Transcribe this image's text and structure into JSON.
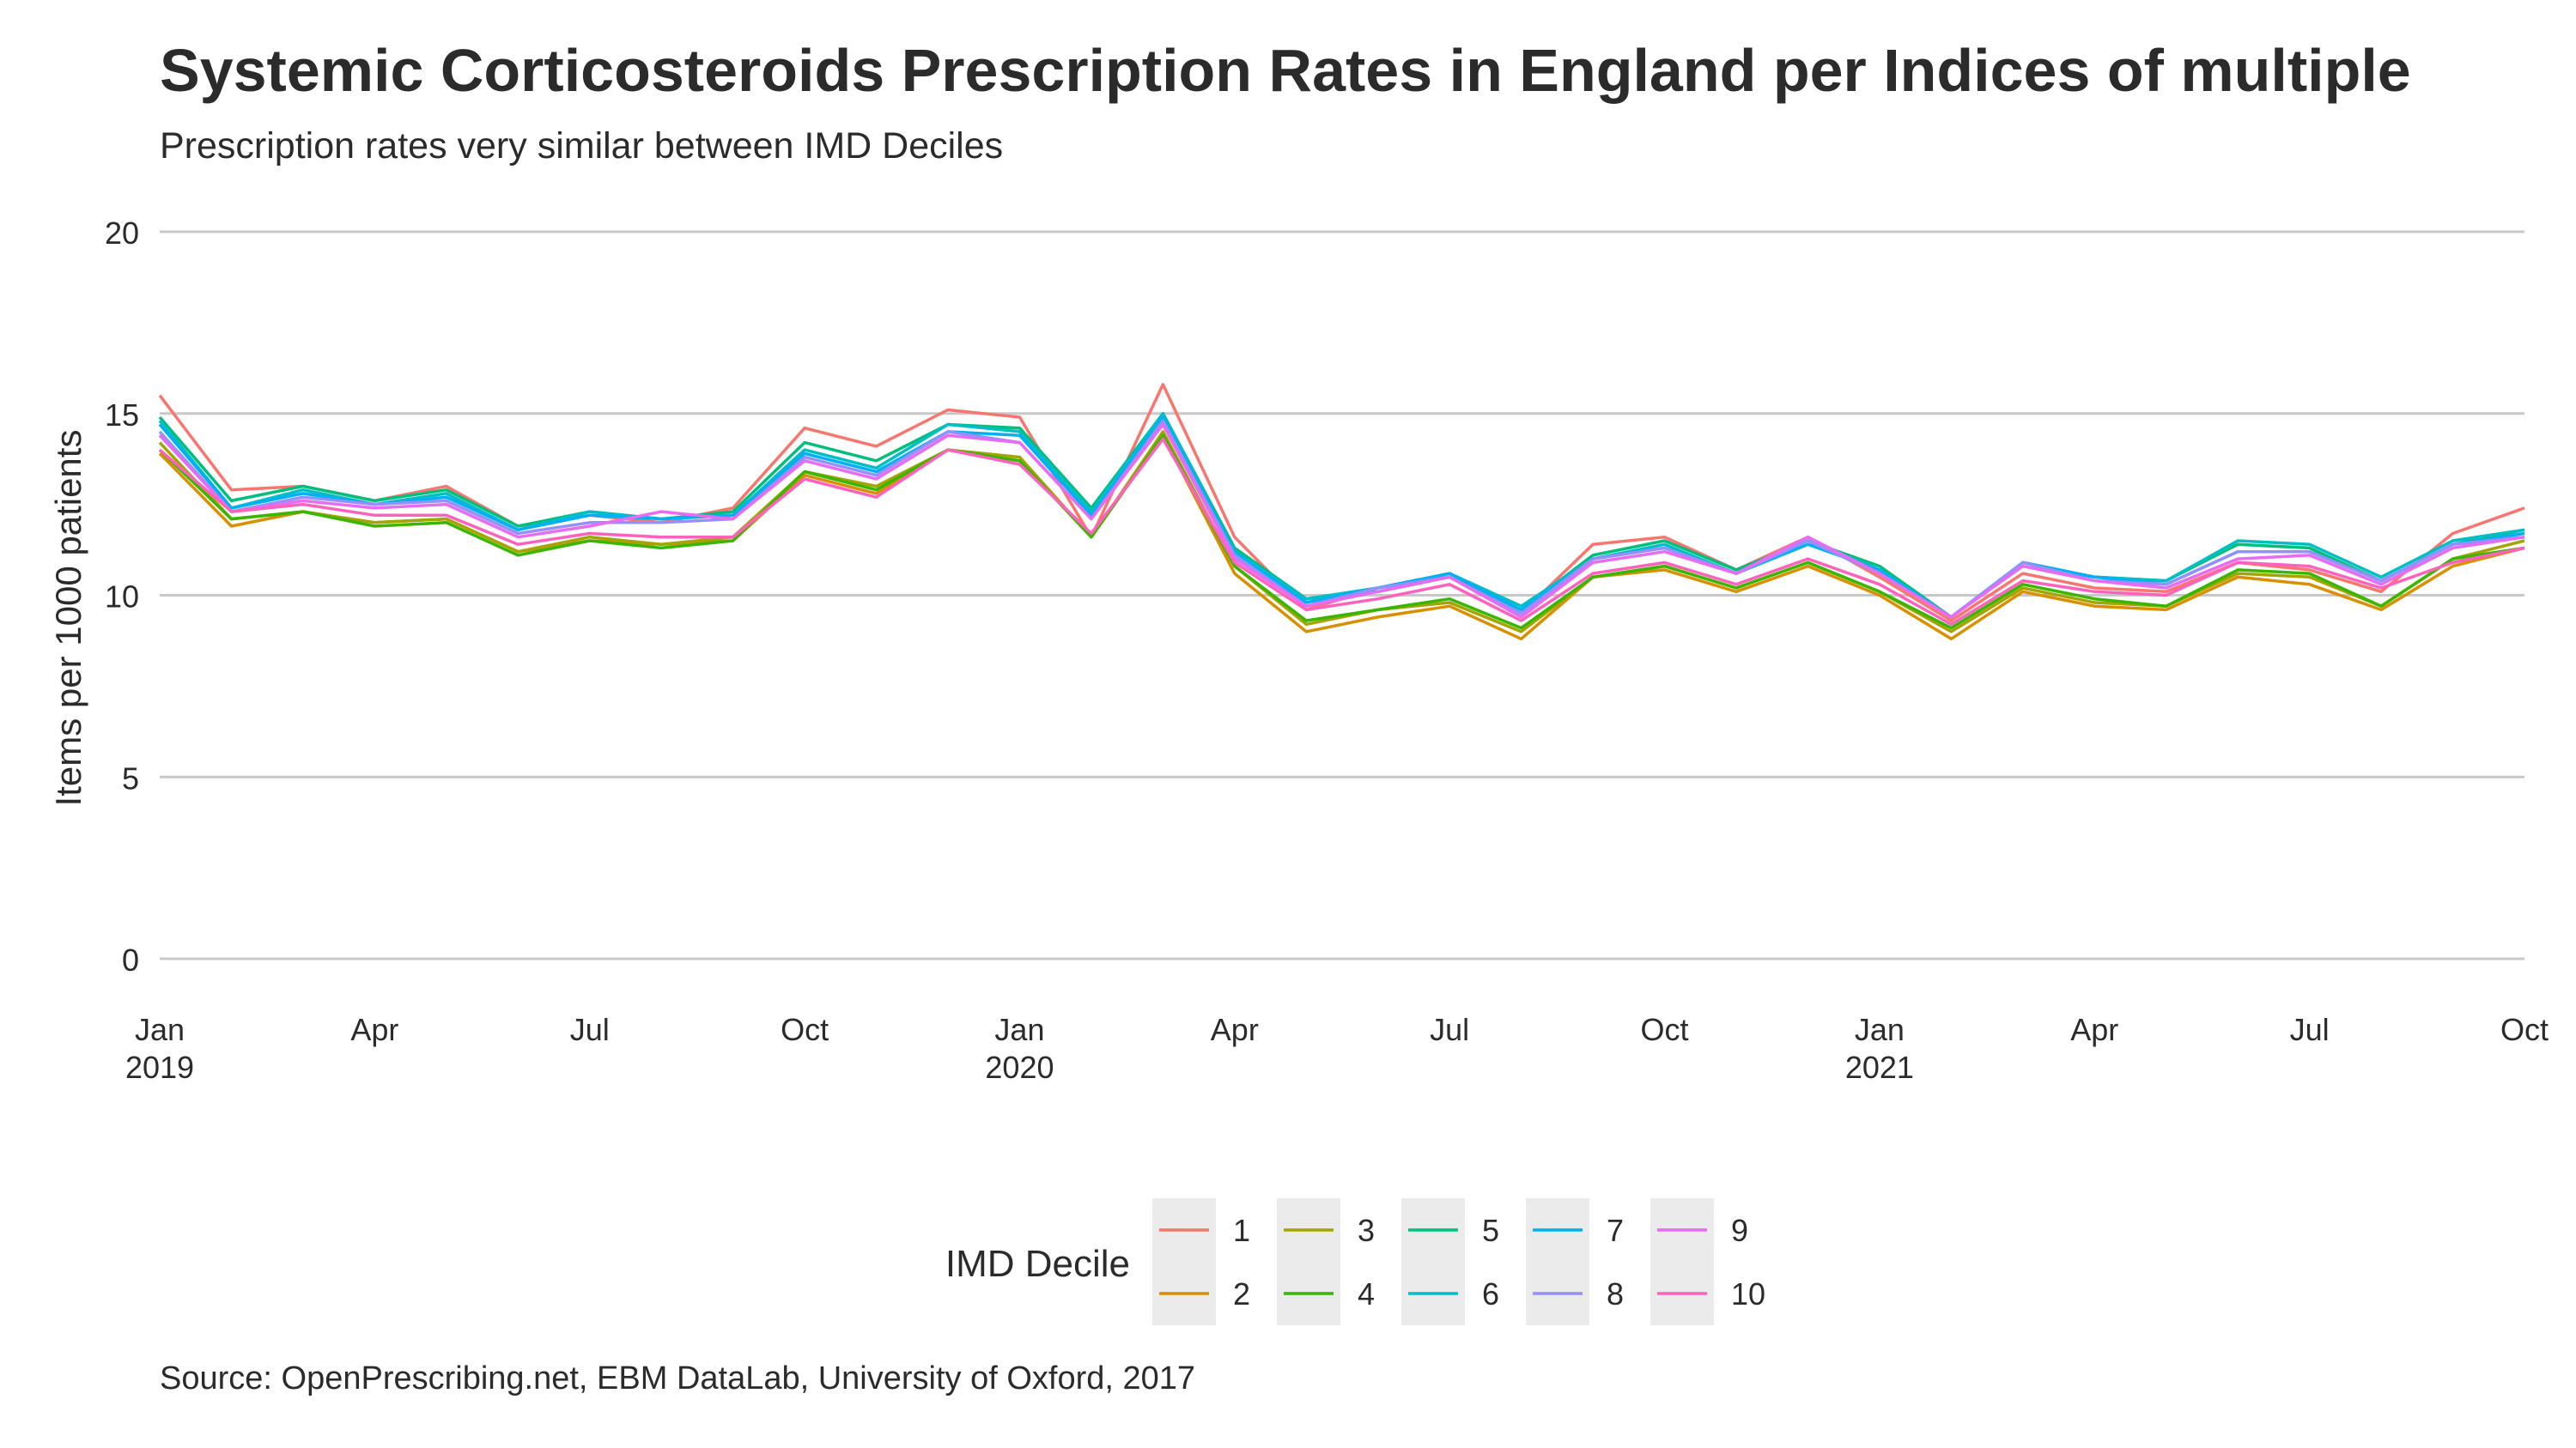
{
  "title": "Systemic Corticosteroids Prescription Rates in England per Indices of multiple",
  "subtitle": "Prescription rates very similar between IMD Deciles",
  "caption": "Source: OpenPrescribing.net, EBM DataLab, University of Oxford, 2017",
  "chart_data": {
    "type": "line",
    "ylabel": "Items per 1000 patients",
    "xlabel": "",
    "ylim": [
      0,
      20
    ],
    "y_ticks": [
      "0",
      "5",
      "10",
      "15",
      "20"
    ],
    "x_tick_labels": [
      {
        "month": 0,
        "line1": "Jan",
        "line2": "2019"
      },
      {
        "month": 3,
        "line1": "Apr",
        "line2": ""
      },
      {
        "month": 6,
        "line1": "Jul",
        "line2": ""
      },
      {
        "month": 9,
        "line1": "Oct",
        "line2": ""
      },
      {
        "month": 12,
        "line1": "Jan",
        "line2": "2020"
      },
      {
        "month": 15,
        "line1": "Apr",
        "line2": ""
      },
      {
        "month": 18,
        "line1": "Jul",
        "line2": ""
      },
      {
        "month": 21,
        "line1": "Oct",
        "line2": ""
      },
      {
        "month": 24,
        "line1": "Jan",
        "line2": "2021"
      },
      {
        "month": 27,
        "line1": "Apr",
        "line2": ""
      },
      {
        "month": 30,
        "line1": "Jul",
        "line2": ""
      },
      {
        "month": 33,
        "line1": "Oct",
        "line2": ""
      }
    ],
    "x": [
      "2019-01",
      "2019-02",
      "2019-03",
      "2019-04",
      "2019-05",
      "2019-06",
      "2019-07",
      "2019-08",
      "2019-09",
      "2019-10",
      "2019-11",
      "2019-12",
      "2020-01",
      "2020-02",
      "2020-03",
      "2020-04",
      "2020-05",
      "2020-06",
      "2020-07",
      "2020-08",
      "2020-09",
      "2020-10",
      "2020-11",
      "2020-12",
      "2021-01",
      "2021-02",
      "2021-03",
      "2021-04",
      "2021-05",
      "2021-06",
      "2021-07",
      "2021-08",
      "2021-09",
      "2021-10"
    ],
    "legend": {
      "title": "IMD Decile",
      "position": "bottom"
    },
    "grid": true,
    "series": [
      {
        "name": "1",
        "color": "#F8766D",
        "values": [
          15.5,
          12.9,
          13.0,
          12.6,
          13.0,
          11.9,
          12.2,
          12.0,
          12.4,
          14.6,
          14.1,
          15.1,
          14.9,
          11.6,
          15.8,
          11.6,
          9.6,
          10.2,
          10.5,
          9.5,
          11.4,
          11.6,
          10.7,
          11.6,
          10.5,
          9.3,
          10.6,
          10.2,
          10.1,
          10.9,
          10.7,
          10.1,
          11.7,
          12.4
        ]
      },
      {
        "name": "2",
        "color": "#D89000",
        "values": [
          13.9,
          11.9,
          12.3,
          12.0,
          12.1,
          11.2,
          11.5,
          11.4,
          11.5,
          13.3,
          12.8,
          14.0,
          13.7,
          11.6,
          14.4,
          10.6,
          9.0,
          9.4,
          9.7,
          8.8,
          10.5,
          10.7,
          10.1,
          10.8,
          10.0,
          8.8,
          10.1,
          9.7,
          9.6,
          10.5,
          10.3,
          9.6,
          10.8,
          11.3
        ]
      },
      {
        "name": "3",
        "color": "#A3A500",
        "values": [
          14.2,
          12.1,
          12.3,
          12.0,
          12.1,
          11.2,
          11.6,
          11.4,
          11.6,
          13.4,
          13.0,
          14.0,
          13.8,
          11.6,
          14.5,
          10.8,
          9.2,
          9.6,
          9.8,
          9.0,
          10.5,
          10.8,
          10.2,
          10.9,
          10.1,
          9.0,
          10.2,
          9.8,
          9.7,
          10.6,
          10.5,
          9.7,
          11.0,
          11.5
        ]
      },
      {
        "name": "4",
        "color": "#39B600",
        "values": [
          14.0,
          12.1,
          12.3,
          11.9,
          12.0,
          11.1,
          11.5,
          11.3,
          11.5,
          13.4,
          12.9,
          14.0,
          13.7,
          11.6,
          14.4,
          10.8,
          9.3,
          9.6,
          9.9,
          9.1,
          10.5,
          10.8,
          10.2,
          10.9,
          10.1,
          9.1,
          10.3,
          9.9,
          9.7,
          10.7,
          10.6,
          9.7,
          11.0,
          11.3
        ]
      },
      {
        "name": "5",
        "color": "#00BF7D",
        "values": [
          14.9,
          12.6,
          13.0,
          12.6,
          12.9,
          11.9,
          12.3,
          12.1,
          12.3,
          14.2,
          13.7,
          14.7,
          14.6,
          12.4,
          15.0,
          11.3,
          9.9,
          10.1,
          10.5,
          9.6,
          11.1,
          11.5,
          10.7,
          11.5,
          10.8,
          9.4,
          10.9,
          10.5,
          10.4,
          11.4,
          11.3,
          10.4,
          11.4,
          11.8
        ]
      },
      {
        "name": "6",
        "color": "#00BFC4",
        "values": [
          14.8,
          12.4,
          12.9,
          12.5,
          12.8,
          11.8,
          12.3,
          12.1,
          12.2,
          14.0,
          13.5,
          14.7,
          14.5,
          12.3,
          15.0,
          11.2,
          9.9,
          10.2,
          10.6,
          9.7,
          11.0,
          11.4,
          10.6,
          11.5,
          10.7,
          9.4,
          10.9,
          10.5,
          10.4,
          11.5,
          11.4,
          10.5,
          11.5,
          11.8
        ]
      },
      {
        "name": "7",
        "color": "#00B0F6",
        "values": [
          14.7,
          12.4,
          12.8,
          12.5,
          12.7,
          11.8,
          12.2,
          12.1,
          12.2,
          13.9,
          13.4,
          14.5,
          14.4,
          12.2,
          14.9,
          11.2,
          9.8,
          10.2,
          10.6,
          9.6,
          11.0,
          11.3,
          10.6,
          11.4,
          10.7,
          9.4,
          10.9,
          10.5,
          10.3,
          11.2,
          11.2,
          10.4,
          11.4,
          11.7
        ]
      },
      {
        "name": "8",
        "color": "#9590FF",
        "values": [
          14.5,
          12.3,
          12.7,
          12.5,
          12.6,
          11.7,
          12.0,
          12.0,
          12.1,
          13.8,
          13.3,
          14.5,
          14.2,
          12.1,
          14.8,
          11.1,
          9.7,
          10.2,
          10.5,
          9.5,
          11.0,
          11.3,
          10.6,
          11.5,
          10.6,
          9.4,
          10.9,
          10.4,
          10.3,
          11.2,
          11.2,
          10.4,
          11.4,
          11.6
        ]
      },
      {
        "name": "9",
        "color": "#E76BF3",
        "values": [
          14.4,
          12.3,
          12.6,
          12.4,
          12.5,
          11.6,
          11.9,
          12.3,
          12.1,
          13.7,
          13.2,
          14.4,
          14.2,
          12.1,
          14.7,
          11.0,
          9.7,
          10.1,
          10.5,
          9.4,
          10.9,
          11.2,
          10.6,
          11.6,
          10.6,
          9.4,
          10.8,
          10.4,
          10.2,
          11.0,
          11.1,
          10.3,
          11.3,
          11.6
        ]
      },
      {
        "name": "10",
        "color": "#FF62BC",
        "values": [
          14.0,
          12.3,
          12.5,
          12.2,
          12.2,
          11.4,
          11.7,
          11.6,
          11.6,
          13.2,
          12.7,
          14.0,
          13.6,
          11.7,
          14.3,
          10.9,
          9.6,
          9.9,
          10.3,
          9.3,
          10.6,
          10.9,
          10.3,
          11.0,
          10.3,
          9.2,
          10.4,
          10.1,
          10.0,
          10.9,
          10.8,
          10.2,
          10.9,
          11.3
        ]
      }
    ]
  }
}
